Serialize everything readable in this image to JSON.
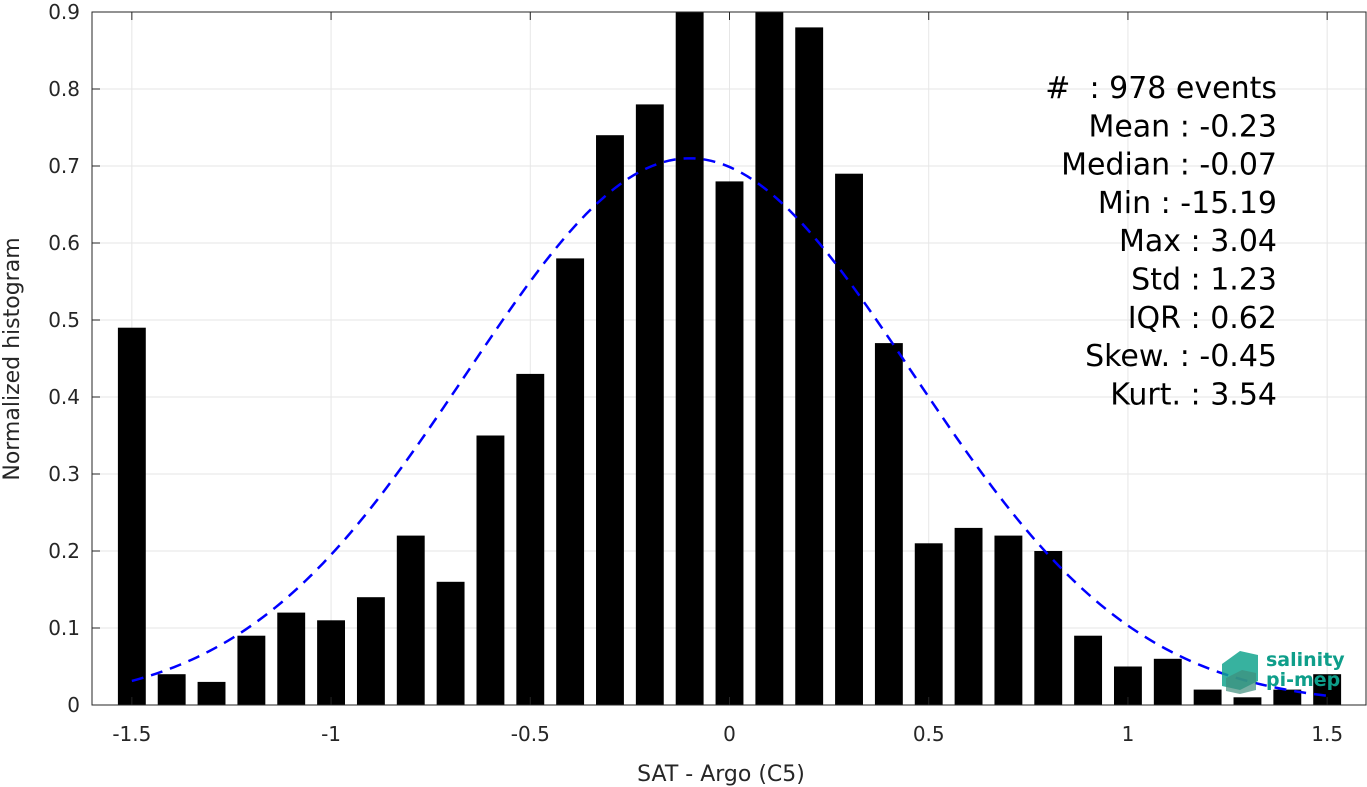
{
  "chart_data": {
    "type": "bar",
    "title": "",
    "xlabel": "SAT - Argo (C5)",
    "ylabel": "Normalized histogram",
    "xlim": [
      -1.6,
      1.6
    ],
    "ylim": [
      0,
      0.9
    ],
    "xticks": [
      -1.5,
      -1,
      -0.5,
      0,
      0.5,
      1,
      1.5
    ],
    "xtick_labels": [
      "-1.5",
      "-1",
      "-0.5",
      "0",
      "0.5",
      "1",
      "1.5"
    ],
    "yticks": [
      0,
      0.1,
      0.2,
      0.3,
      0.4,
      0.5,
      0.6,
      0.7,
      0.8,
      0.9
    ],
    "ytick_labels": [
      "0",
      "0.1",
      "0.2",
      "0.3",
      "0.4",
      "0.5",
      "0.6",
      "0.7",
      "0.8",
      "0.9"
    ],
    "grid": true,
    "bar_width": 0.07,
    "bars": {
      "x": [
        -1.5,
        -1.4,
        -1.3,
        -1.2,
        -1.1,
        -1.0,
        -0.9,
        -0.8,
        -0.7,
        -0.6,
        -0.5,
        -0.4,
        -0.3,
        -0.2,
        -0.1,
        0.0,
        0.1,
        0.2,
        0.3,
        0.4,
        0.5,
        0.6,
        0.7,
        0.8,
        0.9,
        1.0,
        1.1,
        1.2,
        1.3,
        1.4,
        1.5
      ],
      "values": [
        0.49,
        0.04,
        0.03,
        0.09,
        0.12,
        0.11,
        0.14,
        0.22,
        0.16,
        0.35,
        0.43,
        0.58,
        0.74,
        0.78,
        0.9,
        0.68,
        0.9,
        0.88,
        0.69,
        0.47,
        0.21,
        0.23,
        0.22,
        0.2,
        0.09,
        0.05,
        0.06,
        0.02,
        0.01,
        0.02,
        0.04
      ],
      "color": "#000000"
    },
    "fit_curve": {
      "style": "dashed",
      "color": "#0000ff",
      "mean": -0.1,
      "std": 0.56,
      "peak": 0.71,
      "x_range": [
        -1.5,
        1.5
      ]
    },
    "annotations": [
      "#  : 978 events",
      "Mean : -0.23",
      "Median : -0.07",
      "Min : -15.19",
      "Max : 3.04",
      "Std : 1.23",
      "IQR : 0.62",
      "Skew. : -0.45",
      "Kurt. : 3.54"
    ]
  },
  "logo": {
    "line1": "salinity",
    "line2": "pi-mep"
  }
}
